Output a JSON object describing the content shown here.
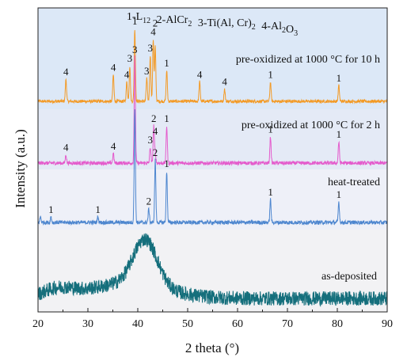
{
  "chart_data": {
    "type": "line",
    "title": "",
    "xlabel": "2 theta (°)",
    "ylabel": "Intensity (a.u.)",
    "xlim": [
      20,
      90
    ],
    "x_ticks": [
      "20",
      "30",
      "40",
      "50",
      "60",
      "70",
      "80",
      "90"
    ],
    "y_ticks_shown": false,
    "grid": false,
    "phase_legend": {
      "position": "top",
      "items": [
        {
          "num": "1",
          "main": "L",
          "sub": "12"
        },
        {
          "num": "2",
          "main": "AlCr",
          "sub": "2"
        },
        {
          "num": "3",
          "main": "Ti(Al, Cr)",
          "sub": "2"
        },
        {
          "num": "4",
          "main": "Al",
          "sub": "2",
          "tail": "O",
          "sub2": "3"
        }
      ]
    },
    "series": [
      {
        "name": "pre-oxidized at 1000 °C for 10 h",
        "color": "#f39a25",
        "band_color": "#dce8f7",
        "baseline": 0.15,
        "peaks": [
          {
            "x": 25.6,
            "h": 0.25,
            "label": "4"
          },
          {
            "x": 35.1,
            "h": 0.3,
            "label": "4"
          },
          {
            "x": 37.8,
            "h": 0.22,
            "label": "4"
          },
          {
            "x": 38.4,
            "h": 0.4,
            "label": "3"
          },
          {
            "x": 39.4,
            "h": 0.82,
            "label": "1"
          },
          {
            "x": 41.8,
            "h": 0.26,
            "label": "3"
          },
          {
            "x": 42.5,
            "h": 0.52,
            "label": "3"
          },
          {
            "x": 43.1,
            "h": 0.7,
            "label": "4"
          },
          {
            "x": 43.5,
            "h": 0.62,
            "label": "2"
          },
          {
            "x": 45.8,
            "h": 0.35,
            "label": "1"
          },
          {
            "x": 52.4,
            "h": 0.22,
            "label": "4"
          },
          {
            "x": 57.4,
            "h": 0.14,
            "label": "4"
          },
          {
            "x": 66.6,
            "h": 0.22,
            "label": "1"
          },
          {
            "x": 80.3,
            "h": 0.18,
            "label": "1"
          }
        ]
      },
      {
        "name": "pre-oxidized at 1000 °C for 2 h",
        "color": "#e45bcc",
        "band_color": "#e4eaf6",
        "baseline": 0.1,
        "peaks": [
          {
            "x": 25.6,
            "h": 0.08,
            "label": "4"
          },
          {
            "x": 35.1,
            "h": 0.09,
            "label": "4"
          },
          {
            "x": 39.4,
            "h": 1.0,
            "label": "3"
          },
          {
            "x": 42.5,
            "h": 0.15,
            "label": "3"
          },
          {
            "x": 43.2,
            "h": 0.35,
            "label": "2"
          },
          {
            "x": 43.5,
            "h": 0.1,
            "label": "4"
          },
          {
            "x": 45.8,
            "h": 0.35,
            "label": "1"
          },
          {
            "x": 66.6,
            "h": 0.25,
            "label": "1"
          },
          {
            "x": 80.3,
            "h": 0.2,
            "label": "1"
          }
        ]
      },
      {
        "name": "heat-treated",
        "color": "#4d86cf",
        "band_color": "#eef0f8",
        "baseline": 0.05,
        "peaks": [
          {
            "x": 20.5,
            "h": 0.05,
            "label": ""
          },
          {
            "x": 22.6,
            "h": 0.05,
            "label": "1"
          },
          {
            "x": 32.0,
            "h": 0.05,
            "label": "1"
          },
          {
            "x": 39.4,
            "h": 1.0,
            "label": ""
          },
          {
            "x": 42.2,
            "h": 0.12,
            "label": "2"
          },
          {
            "x": 43.5,
            "h": 0.55,
            "label": "2"
          },
          {
            "x": 45.8,
            "h": 0.45,
            "label": "1"
          },
          {
            "x": 66.6,
            "h": 0.2,
            "label": "1"
          },
          {
            "x": 80.3,
            "h": 0.18,
            "label": "1"
          }
        ]
      },
      {
        "name": "as-deposited",
        "color": "#156f7c",
        "band_color": "#f2f2f4",
        "baseline": 0.1,
        "broad_peak": {
          "x": 41.5,
          "h": 0.72
        }
      }
    ]
  }
}
